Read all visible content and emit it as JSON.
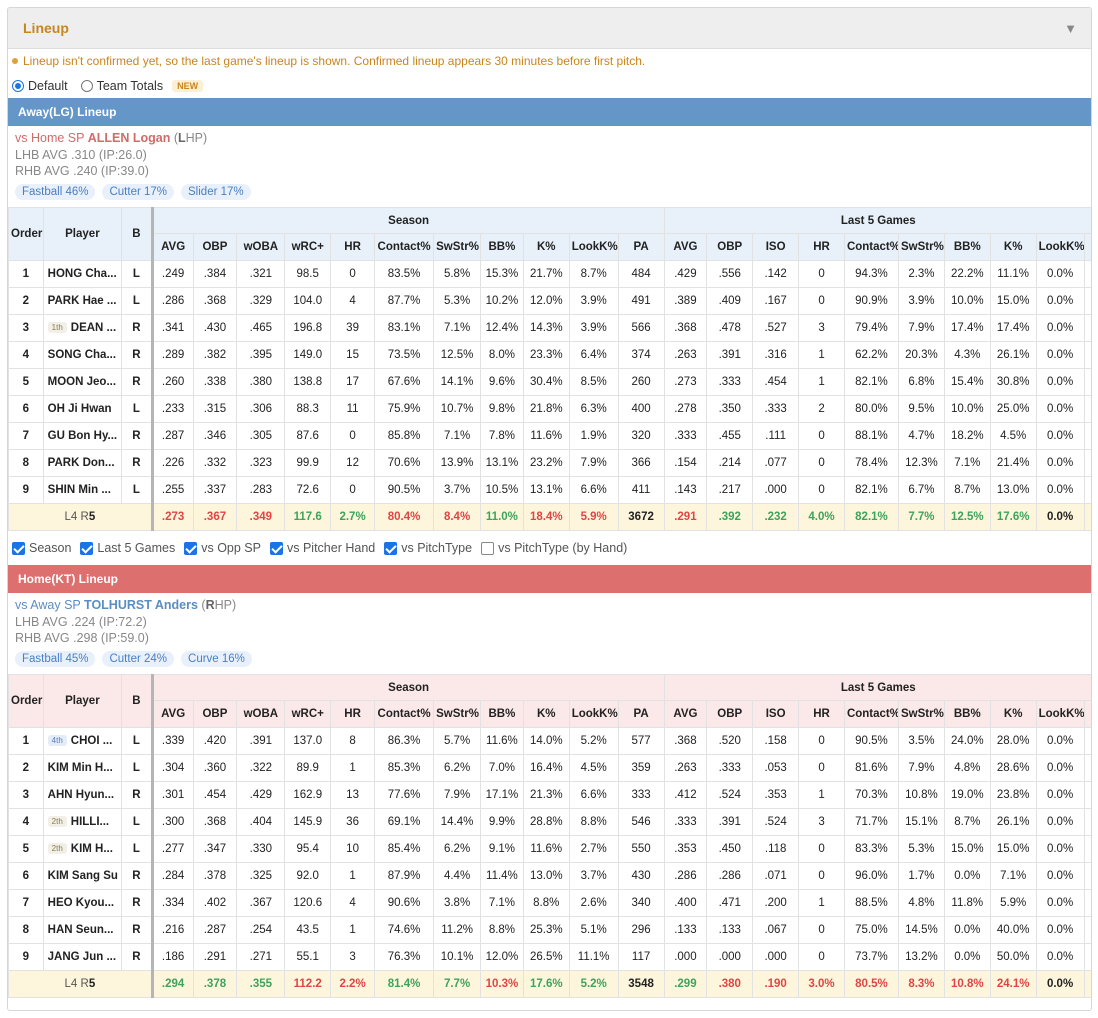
{
  "header": {
    "title": "Lineup",
    "collapse_icon": "triangle-down-icon"
  },
  "notice": "Lineup isn't confirmed yet, so the last game's lineup is shown. Confirmed lineup appears 30 minutes before first pitch.",
  "modes": {
    "default_label": "Default",
    "team_totals_label": "Team Totals",
    "new_badge": "NEW",
    "selected": "Default"
  },
  "columns": {
    "order": "Order",
    "player": "Player",
    "bats": "B",
    "season_group": "Season",
    "last5_group": "Last 5 Games",
    "season": [
      "AVG",
      "OBP",
      "wOBA",
      "wRC+",
      "HR",
      "Contact%",
      "SwStr%",
      "BB%",
      "K%",
      "LookK%",
      "PA"
    ],
    "last5": [
      "AVG",
      "OBP",
      "ISO",
      "HR",
      "Contact%",
      "SwStr%",
      "BB%",
      "K%",
      "LookK%"
    ]
  },
  "away": {
    "title": "Away(LG) Lineup",
    "color": "#6496c8",
    "sp_prefix": "vs Home SP ",
    "sp_name": "ALLEN Logan",
    "sp_hand_open": " (",
    "sp_hand_letter": "L",
    "sp_hand_rest": "HP)",
    "lhb": "LHB AVG .310 (IP:26.0)",
    "rhb": "RHB AVG .240 (IP:39.0)",
    "pitches": [
      "Fastball 46%",
      "Cutter 17%",
      "Slider 17%"
    ],
    "rows": [
      {
        "order": "1",
        "rank": "",
        "player": "HONG Cha...",
        "b": "L",
        "season": [
          ".249",
          ".384",
          ".321",
          "98.5",
          "0",
          "83.5%",
          "5.8%",
          "15.3%",
          "21.7%",
          "8.7%",
          "484"
        ],
        "last5": [
          ".429",
          ".556",
          ".142",
          "0",
          "94.3%",
          "2.3%",
          "22.2%",
          "11.1%",
          "0.0%"
        ]
      },
      {
        "order": "2",
        "rank": "",
        "player": "PARK Hae ...",
        "b": "L",
        "season": [
          ".286",
          ".368",
          ".329",
          "104.0",
          "4",
          "87.7%",
          "5.3%",
          "10.2%",
          "12.0%",
          "3.9%",
          "491"
        ],
        "last5": [
          ".389",
          ".409",
          ".167",
          "0",
          "90.9%",
          "3.9%",
          "10.0%",
          "15.0%",
          "0.0%"
        ]
      },
      {
        "order": "3",
        "rank": "1th",
        "player": "DEAN ...",
        "b": "R",
        "season": [
          ".341",
          ".430",
          ".465",
          "196.8",
          "39",
          "83.1%",
          "7.1%",
          "12.4%",
          "14.3%",
          "3.9%",
          "566"
        ],
        "last5": [
          ".368",
          ".478",
          ".527",
          "3",
          "79.4%",
          "7.9%",
          "17.4%",
          "17.4%",
          "0.0%"
        ]
      },
      {
        "order": "4",
        "rank": "",
        "player": "SONG Cha...",
        "b": "R",
        "season": [
          ".289",
          ".382",
          ".395",
          "149.0",
          "15",
          "73.5%",
          "12.5%",
          "8.0%",
          "23.3%",
          "6.4%",
          "374"
        ],
        "last5": [
          ".263",
          ".391",
          ".316",
          "1",
          "62.2%",
          "20.3%",
          "4.3%",
          "26.1%",
          "0.0%"
        ]
      },
      {
        "order": "5",
        "rank": "",
        "player": "MOON Jeo...",
        "b": "R",
        "season": [
          ".260",
          ".338",
          ".380",
          "138.8",
          "17",
          "67.6%",
          "14.1%",
          "9.6%",
          "30.4%",
          "8.5%",
          "260"
        ],
        "last5": [
          ".273",
          ".333",
          ".454",
          "1",
          "82.1%",
          "6.8%",
          "15.4%",
          "30.8%",
          "0.0%"
        ]
      },
      {
        "order": "6",
        "rank": "",
        "player": "OH Ji Hwan",
        "b": "L",
        "season": [
          ".233",
          ".315",
          ".306",
          "88.3",
          "11",
          "75.9%",
          "10.7%",
          "9.8%",
          "21.8%",
          "6.3%",
          "400"
        ],
        "last5": [
          ".278",
          ".350",
          ".333",
          "2",
          "80.0%",
          "9.5%",
          "10.0%",
          "25.0%",
          "0.0%"
        ]
      },
      {
        "order": "7",
        "rank": "",
        "player": "GU Bon Hy...",
        "b": "R",
        "season": [
          ".287",
          ".346",
          ".305",
          "87.6",
          "0",
          "85.8%",
          "7.1%",
          "7.8%",
          "11.6%",
          "1.9%",
          "320"
        ],
        "last5": [
          ".333",
          ".455",
          ".111",
          "0",
          "88.1%",
          "4.7%",
          "18.2%",
          "4.5%",
          "0.0%"
        ]
      },
      {
        "order": "8",
        "rank": "",
        "player": "PARK Don...",
        "b": "R",
        "season": [
          ".226",
          ".332",
          ".323",
          "99.9",
          "12",
          "70.6%",
          "13.9%",
          "13.1%",
          "23.2%",
          "7.9%",
          "366"
        ],
        "last5": [
          ".154",
          ".214",
          ".077",
          "0",
          "78.4%",
          "12.3%",
          "7.1%",
          "21.4%",
          "0.0%"
        ]
      },
      {
        "order": "9",
        "rank": "",
        "player": "SHIN Min ...",
        "b": "L",
        "season": [
          ".255",
          ".337",
          ".283",
          "72.6",
          "0",
          "90.5%",
          "3.7%",
          "10.5%",
          "13.1%",
          "6.6%",
          "411"
        ],
        "last5": [
          ".143",
          ".217",
          ".000",
          "0",
          "82.1%",
          "6.7%",
          "8.7%",
          "13.0%",
          "0.0%"
        ]
      }
    ],
    "total": {
      "lr_l": "L4",
      "lr_r": "R",
      "lr_rnum": "5",
      "season": [
        ".273",
        ".367",
        ".349",
        "117.6",
        "2.7%",
        "80.4%",
        "8.4%",
        "11.0%",
        "18.4%",
        "5.9%",
        "3672"
      ],
      "season_tone": [
        "r",
        "r",
        "r",
        "g",
        "g",
        "r",
        "r",
        "g",
        "r",
        "r",
        "k"
      ],
      "last5": [
        ".291",
        ".392",
        ".232",
        "4.0%",
        "82.1%",
        "7.7%",
        "12.5%",
        "17.6%",
        "0.0%"
      ],
      "last5_tone": [
        "r",
        "g",
        "g",
        "g",
        "g",
        "g",
        "g",
        "g",
        "k"
      ]
    }
  },
  "filters": [
    {
      "label": "Season",
      "checked": true
    },
    {
      "label": "Last 5 Games",
      "checked": true
    },
    {
      "label": "vs Opp SP",
      "checked": true
    },
    {
      "label": "vs Pitcher Hand",
      "checked": true
    },
    {
      "label": "vs PitchType",
      "checked": true
    },
    {
      "label": "vs PitchType (by Hand)",
      "checked": false
    }
  ],
  "home": {
    "title": "Home(KT) Lineup",
    "color": "#de6f6f",
    "sp_prefix": "vs Away SP ",
    "sp_name": "TOLHURST Anders",
    "sp_hand_open": " (",
    "sp_hand_letter": "R",
    "sp_hand_rest": "HP)",
    "lhb": "LHB AVG .224 (IP:72.2)",
    "rhb": "RHB AVG .298 (IP:59.0)",
    "pitches": [
      "Fastball 45%",
      "Cutter 24%",
      "Curve 16%"
    ],
    "rows": [
      {
        "order": "1",
        "rank": "4th",
        "player": "CHOI ...",
        "b": "L",
        "season": [
          ".339",
          ".420",
          ".391",
          "137.0",
          "8",
          "86.3%",
          "5.7%",
          "11.6%",
          "14.0%",
          "5.2%",
          "577"
        ],
        "last5": [
          ".368",
          ".520",
          ".158",
          "0",
          "90.5%",
          "3.5%",
          "24.0%",
          "28.0%",
          "0.0%"
        ]
      },
      {
        "order": "2",
        "rank": "",
        "player": "KIM Min H...",
        "b": "L",
        "season": [
          ".304",
          ".360",
          ".322",
          "89.9",
          "1",
          "85.3%",
          "6.2%",
          "7.0%",
          "16.4%",
          "4.5%",
          "359"
        ],
        "last5": [
          ".263",
          ".333",
          ".053",
          "0",
          "81.6%",
          "7.9%",
          "4.8%",
          "28.6%",
          "0.0%"
        ]
      },
      {
        "order": "3",
        "rank": "",
        "player": "AHN Hyun...",
        "b": "R",
        "season": [
          ".301",
          ".454",
          ".429",
          "162.9",
          "13",
          "77.6%",
          "7.9%",
          "17.1%",
          "21.3%",
          "6.6%",
          "333"
        ],
        "last5": [
          ".412",
          ".524",
          ".353",
          "1",
          "70.3%",
          "10.8%",
          "19.0%",
          "23.8%",
          "0.0%"
        ]
      },
      {
        "order": "4",
        "rank": "2th",
        "player": "HILLI...",
        "b": "L",
        "season": [
          ".300",
          ".368",
          ".404",
          "145.9",
          "36",
          "69.1%",
          "14.4%",
          "9.9%",
          "28.8%",
          "8.8%",
          "546"
        ],
        "last5": [
          ".333",
          ".391",
          ".524",
          "3",
          "71.7%",
          "15.1%",
          "8.7%",
          "26.1%",
          "0.0%"
        ]
      },
      {
        "order": "5",
        "rank": "2th",
        "player": "KIM H...",
        "b": "L",
        "season": [
          ".277",
          ".347",
          ".330",
          "95.4",
          "10",
          "85.4%",
          "6.2%",
          "9.1%",
          "11.6%",
          "2.7%",
          "550"
        ],
        "last5": [
          ".353",
          ".450",
          ".118",
          "0",
          "83.3%",
          "5.3%",
          "15.0%",
          "15.0%",
          "0.0%"
        ]
      },
      {
        "order": "6",
        "rank": "",
        "player": "KIM Sang Su",
        "b": "R",
        "season": [
          ".284",
          ".378",
          ".325",
          "92.0",
          "1",
          "87.9%",
          "4.4%",
          "11.4%",
          "13.0%",
          "3.7%",
          "430"
        ],
        "last5": [
          ".286",
          ".286",
          ".071",
          "0",
          "96.0%",
          "1.7%",
          "0.0%",
          "7.1%",
          "0.0%"
        ]
      },
      {
        "order": "7",
        "rank": "",
        "player": "HEO Kyou...",
        "b": "R",
        "season": [
          ".334",
          ".402",
          ".367",
          "120.6",
          "4",
          "90.6%",
          "3.8%",
          "7.1%",
          "8.8%",
          "2.6%",
          "340"
        ],
        "last5": [
          ".400",
          ".471",
          ".200",
          "1",
          "88.5%",
          "4.8%",
          "11.8%",
          "5.9%",
          "0.0%"
        ]
      },
      {
        "order": "8",
        "rank": "",
        "player": "HAN Seun...",
        "b": "R",
        "season": [
          ".216",
          ".287",
          ".254",
          "43.5",
          "1",
          "74.6%",
          "11.2%",
          "8.8%",
          "25.3%",
          "5.1%",
          "296"
        ],
        "last5": [
          ".133",
          ".133",
          ".067",
          "0",
          "75.0%",
          "14.5%",
          "0.0%",
          "40.0%",
          "0.0%"
        ]
      },
      {
        "order": "9",
        "rank": "",
        "player": "JANG Jun ...",
        "b": "R",
        "season": [
          ".186",
          ".291",
          ".271",
          "55.1",
          "3",
          "76.3%",
          "10.1%",
          "12.0%",
          "26.5%",
          "11.1%",
          "117"
        ],
        "last5": [
          ".000",
          ".000",
          ".000",
          "0",
          "73.7%",
          "13.2%",
          "0.0%",
          "50.0%",
          "0.0%"
        ]
      }
    ],
    "total": {
      "lr_l": "L4",
      "lr_r": "R",
      "lr_rnum": "5",
      "season": [
        ".294",
        ".378",
        ".355",
        "112.2",
        "2.2%",
        "81.4%",
        "7.7%",
        "10.3%",
        "17.6%",
        "5.2%",
        "3548"
      ],
      "season_tone": [
        "g",
        "g",
        "g",
        "r",
        "r",
        "g",
        "g",
        "r",
        "g",
        "g",
        "k"
      ],
      "last5": [
        ".299",
        ".380",
        ".190",
        "3.0%",
        "80.5%",
        "8.3%",
        "10.8%",
        "24.1%",
        "0.0%"
      ],
      "last5_tone": [
        "g",
        "r",
        "r",
        "r",
        "r",
        "r",
        "r",
        "r",
        "k"
      ]
    }
  }
}
